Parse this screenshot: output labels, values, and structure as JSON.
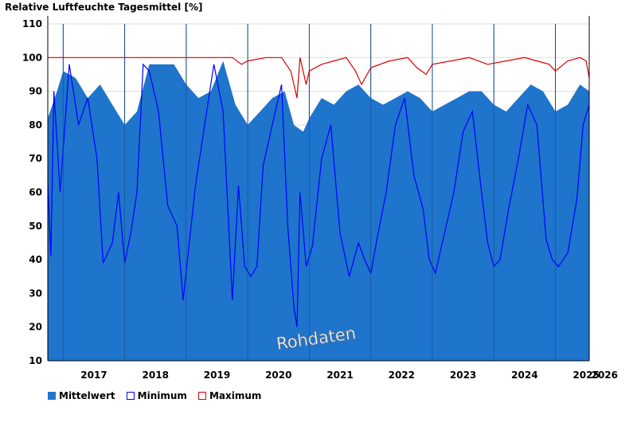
{
  "chart_data": {
    "type": "area",
    "title": "Relative Luftfeuchte Tagesmittel [%]",
    "ylim": [
      10,
      110
    ],
    "yticks": [
      10,
      20,
      30,
      40,
      50,
      60,
      70,
      80,
      90,
      100,
      110
    ],
    "xlim": [
      2016.75,
      2025.55
    ],
    "xticks": [
      "2017",
      "2018",
      "2019",
      "2020",
      "2021",
      "2022",
      "2023",
      "2024",
      "2025",
      "2026"
    ],
    "grid": true,
    "annotation": "Rohdaten",
    "legend_position": "bottom-left",
    "series": [
      {
        "name": "Mittelwert",
        "color": "#1f74cc",
        "fill": true,
        "x": [
          2016.75,
          2016.9,
          2017.0,
          2017.2,
          2017.4,
          2017.6,
          2017.8,
          2018.0,
          2018.2,
          2018.4,
          2018.6,
          2018.8,
          2019.0,
          2019.2,
          2019.4,
          2019.6,
          2019.8,
          2020.0,
          2020.2,
          2020.4,
          2020.6,
          2020.75,
          2020.9,
          2021.0,
          2021.2,
          2021.4,
          2021.6,
          2021.8,
          2022.0,
          2022.2,
          2022.4,
          2022.6,
          2022.8,
          2023.0,
          2023.2,
          2023.4,
          2023.6,
          2023.8,
          2024.0,
          2024.2,
          2024.4,
          2024.6,
          2024.8,
          2025.0,
          2025.2,
          2025.4,
          2025.55
        ],
        "y": [
          82,
          90,
          96,
          94,
          88,
          92,
          86,
          80,
          84,
          98,
          98,
          98,
          92,
          88,
          90,
          99,
          86,
          80,
          84,
          88,
          90,
          80,
          78,
          82,
          88,
          86,
          90,
          92,
          88,
          86,
          88,
          90,
          88,
          84,
          86,
          88,
          90,
          90,
          86,
          84,
          88,
          92,
          90,
          84,
          86,
          92,
          90
        ]
      },
      {
        "name": "Minimum",
        "color": "#0000ff",
        "fill": false,
        "x": [
          2016.75,
          2016.8,
          2016.85,
          2016.95,
          2017.1,
          2017.25,
          2017.4,
          2017.55,
          2017.65,
          2017.8,
          2017.9,
          2018.0,
          2018.1,
          2018.2,
          2018.3,
          2018.4,
          2018.55,
          2018.7,
          2018.85,
          2018.95,
          2019.05,
          2019.15,
          2019.3,
          2019.45,
          2019.6,
          2019.75,
          2019.85,
          2019.95,
          2020.05,
          2020.15,
          2020.25,
          2020.4,
          2020.55,
          2020.65,
          2020.75,
          2020.8,
          2020.85,
          2020.95,
          2021.05,
          2021.2,
          2021.35,
          2021.5,
          2021.65,
          2021.8,
          2021.9,
          2022.0,
          2022.1,
          2022.25,
          2022.4,
          2022.55,
          2022.7,
          2022.85,
          2022.95,
          2023.05,
          2023.2,
          2023.35,
          2023.5,
          2023.65,
          2023.8,
          2023.9,
          2024.0,
          2024.1,
          2024.25,
          2024.4,
          2024.55,
          2024.7,
          2024.85,
          2024.95,
          2025.05,
          2025.2,
          2025.35,
          2025.45,
          2025.55
        ],
        "y": [
          63,
          41,
          90,
          60,
          98,
          80,
          88,
          70,
          39,
          45,
          60,
          39,
          48,
          60,
          98,
          96,
          84,
          56,
          50,
          28,
          45,
          62,
          80,
          98,
          84,
          28,
          62,
          38,
          35,
          38,
          68,
          80,
          92,
          50,
          26,
          20,
          60,
          38,
          44,
          70,
          80,
          48,
          35,
          45,
          40,
          36,
          46,
          60,
          80,
          88,
          65,
          55,
          40,
          36,
          48,
          60,
          78,
          84,
          60,
          45,
          38,
          40,
          56,
          70,
          86,
          80,
          46,
          40,
          38,
          42,
          58,
          80,
          86
        ]
      },
      {
        "name": "Maximum",
        "color": "#dd0000",
        "fill": false,
        "x": [
          2016.75,
          2017.0,
          2017.5,
          2018.0,
          2018.5,
          2019.0,
          2019.5,
          2019.75,
          2019.9,
          2020.0,
          2020.3,
          2020.55,
          2020.7,
          2020.8,
          2020.85,
          2020.95,
          2021.0,
          2021.2,
          2021.4,
          2021.6,
          2021.75,
          2021.85,
          2022.0,
          2022.3,
          2022.6,
          2022.75,
          2022.9,
          2023.0,
          2023.3,
          2023.6,
          2023.9,
          2024.2,
          2024.5,
          2024.7,
          2024.9,
          2025.0,
          2025.2,
          2025.4,
          2025.5,
          2025.55
        ],
        "y": [
          100,
          100,
          100,
          100,
          100,
          100,
          100,
          100,
          98,
          99,
          100,
          100,
          96,
          88,
          100,
          92,
          96,
          98,
          99,
          100,
          96,
          92,
          97,
          99,
          100,
          97,
          95,
          98,
          99,
          100,
          98,
          99,
          100,
          99,
          98,
          96,
          99,
          100,
          99,
          94
        ]
      }
    ]
  }
}
